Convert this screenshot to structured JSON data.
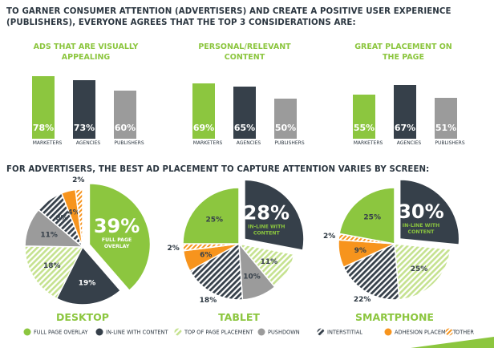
{
  "heading1_line1": "TO GARNER CONSUMER ATTENTION (ADVERTISERS) AND CREATE A POSITIVE USER EXPERIENCE",
  "heading1_line2": "(PUBLISHERS), EVERYONE AGREES THAT THE TOP 3 CONSIDERATIONS ARE:",
  "heading2": "FOR ADVERTISERS, THE BEST AD PLACEMENT TO CAPTURE ATTENTION VARIES BY SCREEN:",
  "colors": {
    "green": "#8cc63f",
    "dark": "#36404a",
    "grey": "#9b9b9b",
    "light_green": "#c5e28f",
    "orange": "#f7941d",
    "title_text": "#2b3640",
    "accent_text": "#8cc63f",
    "white": "#ffffff"
  },
  "chart_data": [
    {
      "type": "bar",
      "title_lines": [
        "ADS THAT ARE VISUALLY",
        "APPEALING"
      ],
      "categories": [
        "MARKETERS",
        "AGENCIES",
        "PUBLISHERS"
      ],
      "values": [
        78,
        73,
        60
      ],
      "value_labels": [
        "78%",
        "73%",
        "60%"
      ],
      "colors": [
        "#8cc63f",
        "#36404a",
        "#9b9b9b"
      ],
      "ylim": [
        0,
        100
      ]
    },
    {
      "type": "bar",
      "title_lines": [
        "PERSONAL/RELEVANT",
        "CONTENT"
      ],
      "categories": [
        "MARKETERS",
        "AGENCIES",
        "PUBLISHERS"
      ],
      "values": [
        69,
        65,
        50
      ],
      "value_labels": [
        "69%",
        "65%",
        "50%"
      ],
      "colors": [
        "#8cc63f",
        "#36404a",
        "#9b9b9b"
      ],
      "ylim": [
        0,
        100
      ]
    },
    {
      "type": "bar",
      "title_lines": [
        "GREAT PLACEMENT ON",
        "THE PAGE"
      ],
      "categories": [
        "MARKETERS",
        "AGENCIES",
        "PUBLISHERS"
      ],
      "values": [
        55,
        67,
        51
      ],
      "value_labels": [
        "55%",
        "67%",
        "51%"
      ],
      "colors": [
        "#8cc63f",
        "#36404a",
        "#9b9b9b"
      ],
      "ylim": [
        0,
        100
      ]
    },
    {
      "type": "pie",
      "title": "DESKTOP",
      "slices": [
        {
          "category": "FULL PAGE OVERLAY",
          "value": 39,
          "label": "39%",
          "sublabel": [
            "FULL PAGE",
            "OVERLAY"
          ],
          "exploded": true,
          "big": true
        },
        {
          "category": "IN-LINE WITH CONTENT",
          "value": 19,
          "label": "19%"
        },
        {
          "category": "TOP OF PAGE PLACEMENT",
          "value": 18,
          "label": "18%"
        },
        {
          "category": "PUSHDOWN",
          "value": 11,
          "label": "11%"
        },
        {
          "category": "INTERSTITIAL",
          "value": 8,
          "label": "8%"
        },
        {
          "category": "ADHESION PLACEMENT",
          "value": 4,
          "label": "4%"
        },
        {
          "category": "OTHER",
          "value": 2,
          "label": "2%"
        }
      ]
    },
    {
      "type": "pie",
      "title": "TABLET",
      "slices": [
        {
          "category": "IN-LINE WITH CONTENT",
          "value": 28,
          "label": "28%",
          "sublabel": [
            "IN-LINE WITH",
            "CONTENT"
          ],
          "exploded": true,
          "big": true
        },
        {
          "category": "TOP OF PAGE PLACEMENT",
          "value": 11,
          "label": "11%"
        },
        {
          "category": "PUSHDOWN",
          "value": 10,
          "label": "10%"
        },
        {
          "category": "INTERSTITIAL",
          "value": 18,
          "label": "18%"
        },
        {
          "category": "ADHESION PLACEMENT",
          "value": 6,
          "label": "6%"
        },
        {
          "category": "OTHER",
          "value": 2,
          "label": "2%"
        },
        {
          "category": "FULL PAGE OVERLAY",
          "value": 25,
          "label": "25%"
        }
      ]
    },
    {
      "type": "pie",
      "title": "SMARTPHONE",
      "slices": [
        {
          "category": "IN-LINE WITH CONTENT",
          "value": 30,
          "label": "30%",
          "sublabel": [
            "IN-LINE WITH",
            "CONTENT"
          ],
          "exploded": true,
          "big": true
        },
        {
          "category": "TOP OF PAGE PLACEMENT",
          "value": 25,
          "label": "25%"
        },
        {
          "category": "INTERSTITIAL",
          "value": 22,
          "label": "22%"
        },
        {
          "category": "ADHESION PLACEMENT",
          "value": 9,
          "label": "9%"
        },
        {
          "category": "OTHER",
          "value": 2,
          "label": "2%"
        },
        {
          "category": "FULL PAGE OVERLAY",
          "value": 25,
          "label": "25%"
        }
      ]
    }
  ],
  "legend": [
    {
      "label": "FULL PAGE OVERLAY",
      "fill": "green"
    },
    {
      "label": "IN-LINE WITH CONTENT",
      "fill": "dark"
    },
    {
      "label": "TOP OF PAGE PLACEMENT",
      "fill": "lightgreen-stripe"
    },
    {
      "label": "PUSHDOWN",
      "fill": "grey"
    },
    {
      "label": "INTERSTITIAL",
      "fill": "dark-stripe"
    },
    {
      "label": "ADHESION PLACEMENT",
      "fill": "orange"
    },
    {
      "label": "OTHER",
      "fill": "orange-stripe"
    }
  ]
}
